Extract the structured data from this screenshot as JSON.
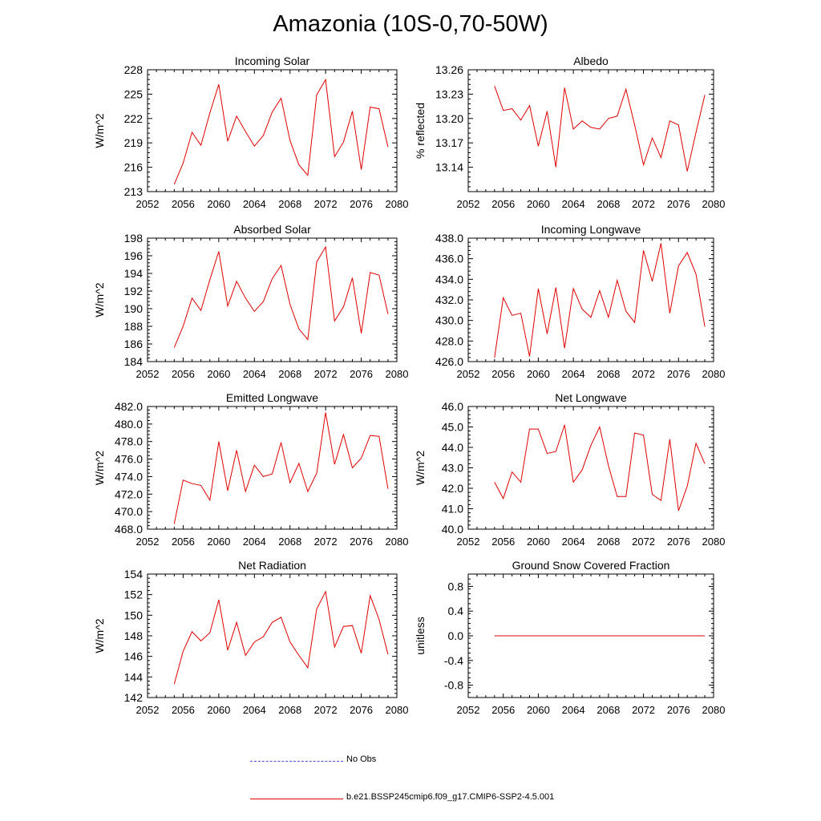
{
  "figure": {
    "title": "Amazonia (10S-0,70-50W)"
  },
  "legend": [
    {
      "label": "No Obs",
      "color": "#4a4ae0",
      "style": "dashed"
    },
    {
      "label": "b.e21.BSSP245cmip6.f09_g17.CMIP6-SSP2-4.5.001",
      "color": "#e00000",
      "style": "solid"
    }
  ],
  "chart_data": [
    {
      "type": "line",
      "title": "Incoming Solar",
      "ylabel": "W/m^2",
      "xlim": [
        2052,
        2080
      ],
      "ylim": [
        213,
        228
      ],
      "xticks": [
        "2052",
        "2056",
        "2060",
        "2064",
        "2068",
        "2072",
        "2076",
        "2080"
      ],
      "yticks": [
        "213",
        "216",
        "219",
        "222",
        "225",
        "228"
      ],
      "x": [
        2055,
        2056,
        2057,
        2058,
        2059,
        2060,
        2061,
        2062,
        2063,
        2064,
        2065,
        2066,
        2067,
        2068,
        2069,
        2070,
        2071,
        2072,
        2073,
        2074,
        2075,
        2076,
        2077,
        2078,
        2079
      ],
      "series": [
        {
          "name": "b.e21.BSSP245cmip6.f09_g17.CMIP6-SSP2-4.5.001",
          "color": "#e00000",
          "values": [
            213.9,
            216.5,
            220.3,
            218.7,
            222.7,
            226.2,
            219.2,
            222.3,
            220.4,
            218.6,
            219.9,
            222.8,
            224.5,
            219.3,
            216.3,
            215.0,
            224.9,
            226.8,
            217.3,
            219.1,
            222.9,
            215.7,
            223.4,
            223.2,
            218.5
          ]
        }
      ]
    },
    {
      "type": "line",
      "title": "Albedo",
      "ylabel": "% reflected",
      "xlim": [
        2052,
        2080
      ],
      "ylim": [
        13.11,
        13.26
      ],
      "xticks": [
        "2052",
        "2056",
        "2060",
        "2064",
        "2068",
        "2072",
        "2076",
        "2080"
      ],
      "yticks": [
        "13.14",
        "13.17",
        "13.20",
        "13.23",
        "13.26"
      ],
      "x": [
        2055,
        2056,
        2057,
        2058,
        2059,
        2060,
        2061,
        2062,
        2063,
        2064,
        2065,
        2066,
        2067,
        2068,
        2069,
        2070,
        2071,
        2072,
        2073,
        2074,
        2075,
        2076,
        2077,
        2078,
        2079
      ],
      "series": [
        {
          "name": "b.e21.BSSP245cmip6.f09_g17.CMIP6-SSP2-4.5.001",
          "color": "#e00000",
          "values": [
            13.24,
            13.21,
            13.212,
            13.198,
            13.216,
            13.166,
            13.209,
            13.14,
            13.238,
            13.187,
            13.197,
            13.189,
            13.187,
            13.2,
            13.203,
            13.236,
            13.192,
            13.143,
            13.176,
            13.152,
            13.197,
            13.192,
            13.135,
            13.183,
            13.229
          ]
        }
      ]
    },
    {
      "type": "line",
      "title": "Absorbed Solar",
      "ylabel": "W/m^2",
      "xlim": [
        2052,
        2080
      ],
      "ylim": [
        184,
        198
      ],
      "xticks": [
        "2052",
        "2056",
        "2060",
        "2064",
        "2068",
        "2072",
        "2076",
        "2080"
      ],
      "yticks": [
        "184",
        "186",
        "188",
        "190",
        "192",
        "194",
        "196",
        "198"
      ],
      "x": [
        2055,
        2056,
        2057,
        2058,
        2059,
        2060,
        2061,
        2062,
        2063,
        2064,
        2065,
        2066,
        2067,
        2068,
        2069,
        2070,
        2071,
        2072,
        2073,
        2074,
        2075,
        2076,
        2077,
        2078,
        2079
      ],
      "series": [
        {
          "name": "b.e21.BSSP245cmip6.f09_g17.CMIP6-SSP2-4.5.001",
          "color": "#e00000",
          "values": [
            185.6,
            188.0,
            191.2,
            189.8,
            193.3,
            196.5,
            190.3,
            193.1,
            191.2,
            189.7,
            190.8,
            193.4,
            194.9,
            190.5,
            187.7,
            186.5,
            195.3,
            197.0,
            188.6,
            190.2,
            193.5,
            187.2,
            194.1,
            193.8,
            189.4
          ]
        }
      ]
    },
    {
      "type": "line",
      "title": "Incoming Longwave",
      "ylabel": "",
      "xlim": [
        2052,
        2080
      ],
      "ylim": [
        426,
        438
      ],
      "xticks": [
        "2052",
        "2056",
        "2060",
        "2064",
        "2068",
        "2072",
        "2076",
        "2080"
      ],
      "yticks": [
        "426.0",
        "428.0",
        "430.0",
        "432.0",
        "434.0",
        "436.0",
        "438.0"
      ],
      "x": [
        2055,
        2056,
        2057,
        2058,
        2059,
        2060,
        2061,
        2062,
        2063,
        2064,
        2065,
        2066,
        2067,
        2068,
        2069,
        2070,
        2071,
        2072,
        2073,
        2074,
        2075,
        2076,
        2077,
        2078,
        2079
      ],
      "series": [
        {
          "name": "b.e21.BSSP245cmip6.f09_g17.CMIP6-SSP2-4.5.001",
          "color": "#e00000",
          "values": [
            426.4,
            432.2,
            430.5,
            430.7,
            426.5,
            433.1,
            428.7,
            433.2,
            427.3,
            433.1,
            431.1,
            430.3,
            432.9,
            430.3,
            433.9,
            430.9,
            429.8,
            436.8,
            433.8,
            437.5,
            430.7,
            435.3,
            436.6,
            434.5,
            429.4
          ]
        }
      ]
    },
    {
      "type": "line",
      "title": "Emitted Longwave",
      "ylabel": "W/m^2",
      "xlim": [
        2052,
        2080
      ],
      "ylim": [
        468,
        482
      ],
      "xticks": [
        "2052",
        "2056",
        "2060",
        "2064",
        "2068",
        "2072",
        "2076",
        "2080"
      ],
      "yticks": [
        "468.0",
        "470.0",
        "472.0",
        "474.0",
        "476.0",
        "478.0",
        "480.0",
        "482.0"
      ],
      "x": [
        2055,
        2056,
        2057,
        2058,
        2059,
        2060,
        2061,
        2062,
        2063,
        2064,
        2065,
        2066,
        2067,
        2068,
        2069,
        2070,
        2071,
        2072,
        2073,
        2074,
        2075,
        2076,
        2077,
        2078,
        2079
      ],
      "series": [
        {
          "name": "b.e21.BSSP245cmip6.f09_g17.CMIP6-SSP2-4.5.001",
          "color": "#e00000",
          "values": [
            468.6,
            473.6,
            473.2,
            473.0,
            471.3,
            478.0,
            472.4,
            477.0,
            472.3,
            475.3,
            474.0,
            474.3,
            477.9,
            473.3,
            475.5,
            472.3,
            474.4,
            481.3,
            475.4,
            478.8,
            475.0,
            476.1,
            478.7,
            478.6,
            472.6
          ]
        }
      ]
    },
    {
      "type": "line",
      "title": "Net Longwave",
      "ylabel": "W/m^2",
      "xlim": [
        2052,
        2080
      ],
      "ylim": [
        40,
        46
      ],
      "xticks": [
        "2052",
        "2056",
        "2060",
        "2064",
        "2068",
        "2072",
        "2076",
        "2080"
      ],
      "yticks": [
        "40.0",
        "41.0",
        "42.0",
        "43.0",
        "44.0",
        "45.0",
        "46.0"
      ],
      "x": [
        2055,
        2056,
        2057,
        2058,
        2059,
        2060,
        2061,
        2062,
        2063,
        2064,
        2065,
        2066,
        2067,
        2068,
        2069,
        2070,
        2071,
        2072,
        2073,
        2074,
        2075,
        2076,
        2077,
        2078,
        2079
      ],
      "series": [
        {
          "name": "b.e21.BSSP245cmip6.f09_g17.CMIP6-SSP2-4.5.001",
          "color": "#e00000",
          "values": [
            42.3,
            41.5,
            42.8,
            42.3,
            44.9,
            44.9,
            43.7,
            43.8,
            45.1,
            42.3,
            42.9,
            44.1,
            45.0,
            43.1,
            41.6,
            41.6,
            44.7,
            44.6,
            41.7,
            41.4,
            44.4,
            40.9,
            42.1,
            44.2,
            43.2
          ]
        }
      ]
    },
    {
      "type": "line",
      "title": "Net Radiation",
      "ylabel": "W/m^2",
      "xlim": [
        2052,
        2080
      ],
      "ylim": [
        142,
        154
      ],
      "xticks": [
        "2052",
        "2056",
        "2060",
        "2064",
        "2068",
        "2072",
        "2076",
        "2080"
      ],
      "yticks": [
        "142",
        "144",
        "146",
        "148",
        "150",
        "152",
        "154"
      ],
      "x": [
        2055,
        2056,
        2057,
        2058,
        2059,
        2060,
        2061,
        2062,
        2063,
        2064,
        2065,
        2066,
        2067,
        2068,
        2069,
        2070,
        2071,
        2072,
        2073,
        2074,
        2075,
        2076,
        2077,
        2078,
        2079
      ],
      "series": [
        {
          "name": "b.e21.BSSP245cmip6.f09_g17.CMIP6-SSP2-4.5.001",
          "color": "#e00000",
          "values": [
            143.3,
            146.5,
            148.4,
            147.5,
            148.3,
            151.5,
            146.6,
            149.3,
            146.1,
            147.4,
            147.9,
            149.3,
            149.8,
            147.4,
            146.1,
            144.9,
            150.6,
            152.3,
            146.9,
            148.9,
            149.0,
            146.3,
            151.9,
            149.6,
            146.2
          ]
        }
      ]
    },
    {
      "type": "line",
      "title": "Ground Snow Covered Fraction",
      "ylabel": "unitless",
      "xlim": [
        2052,
        2080
      ],
      "ylim": [
        -1.0,
        1.0
      ],
      "xticks": [
        "2052",
        "2056",
        "2060",
        "2064",
        "2068",
        "2072",
        "2076",
        "2080"
      ],
      "yticks": [
        "-0.8",
        "-0.4",
        "0.0",
        "0.4",
        "0.8"
      ],
      "x": [
        2055,
        2079
      ],
      "series": [
        {
          "name": "b.e21.BSSP245cmip6.f09_g17.CMIP6-SSP2-4.5.001",
          "color": "#e00000",
          "values": [
            0.0,
            0.0
          ]
        }
      ]
    }
  ]
}
